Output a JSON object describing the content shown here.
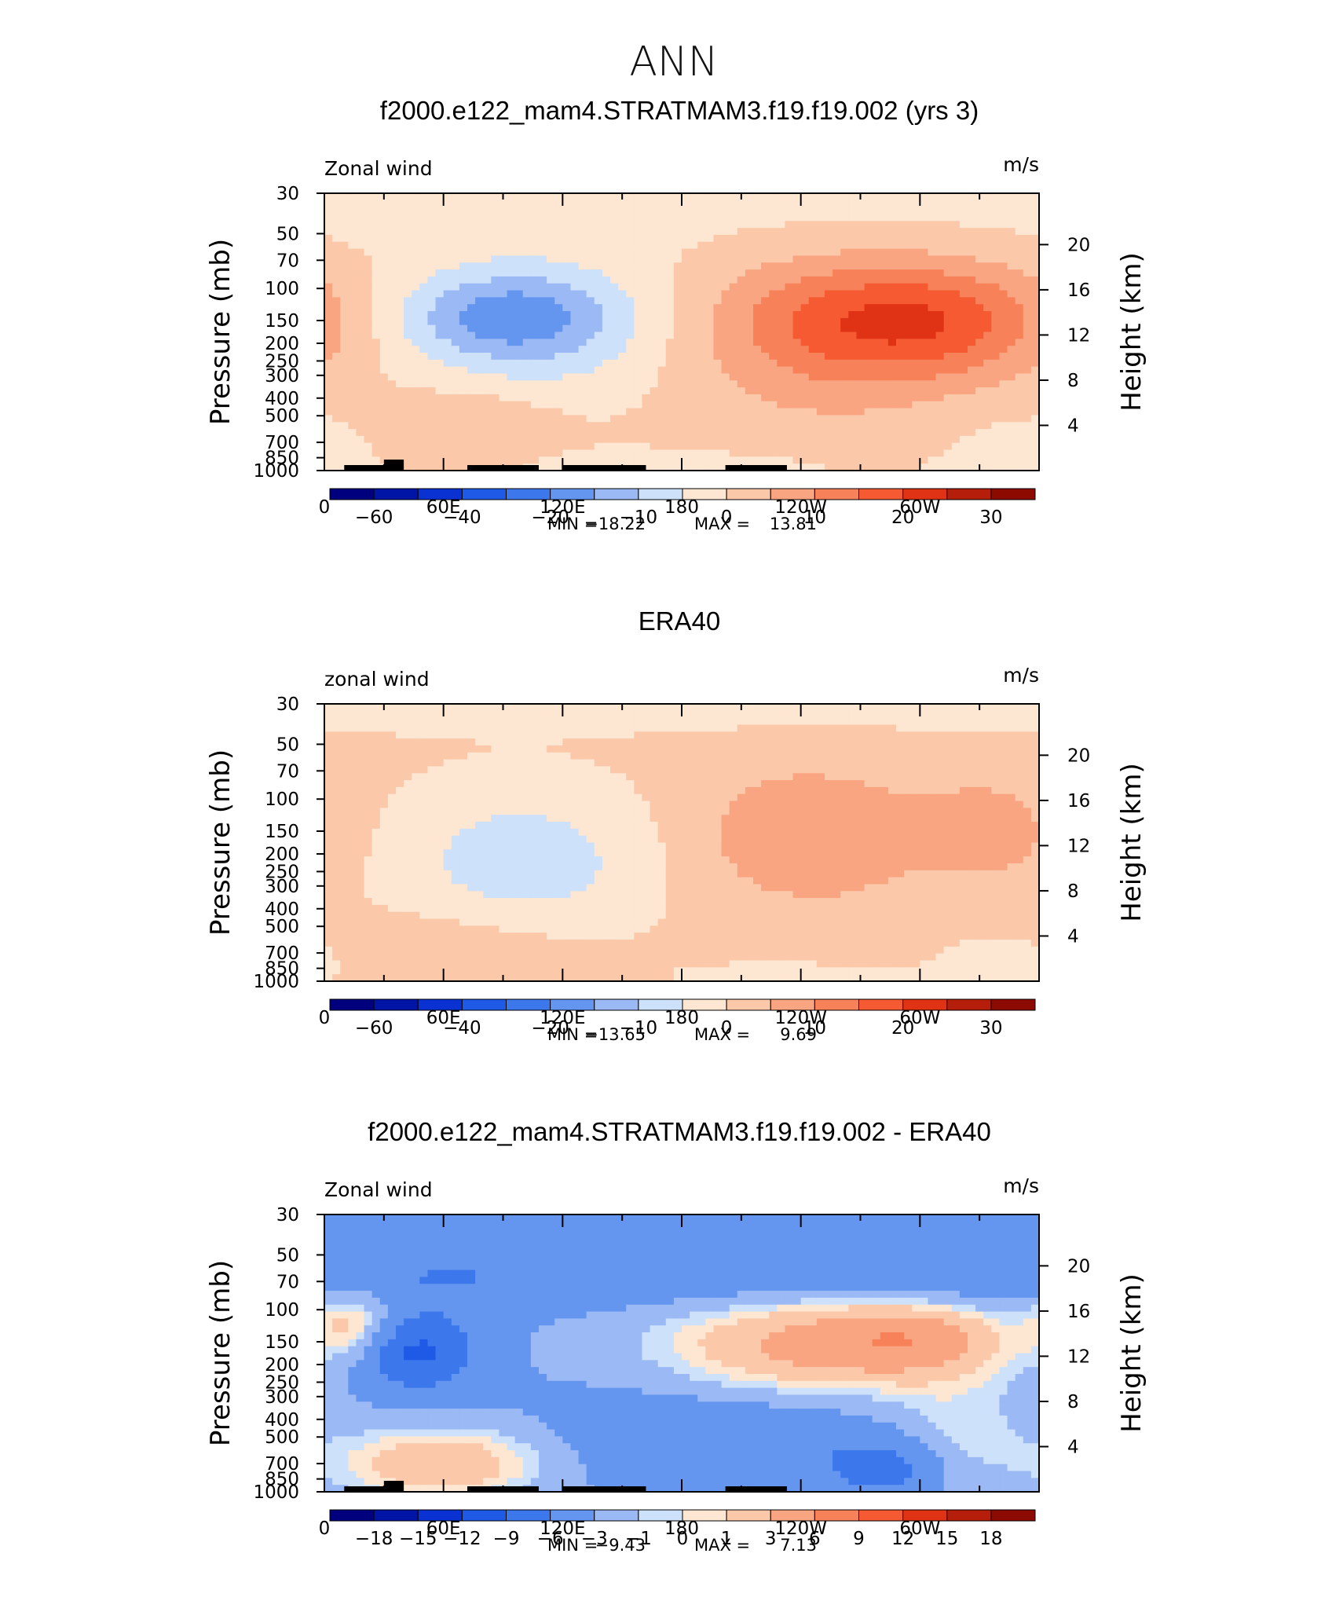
{
  "page_title": "ANN",
  "chart_data": [
    {
      "type": "heatmap",
      "title": "f2000.e122_mam4.STRATMAM3.f19.f19.002 (yrs 3)",
      "left_label": "Zonal wind",
      "units": "m/s",
      "ylabel": "Pressure (mb)",
      "ylabel_right": "Height (km)",
      "x_ticks": [
        "0",
        "60E",
        "120E",
        "180",
        "120W",
        "60W"
      ],
      "x_range_deg": [
        0,
        360
      ],
      "y_ticks": [
        "30",
        "50",
        "70",
        "100",
        "150",
        "200",
        "250",
        "300",
        "400",
        "500",
        "700",
        "850",
        "1000"
      ],
      "y_range_mb": [
        1000,
        30
      ],
      "y_scale": "log",
      "right_ticks": [
        "20",
        "16",
        "12",
        "8",
        "4"
      ],
      "stats": {
        "min_label": "MIN =",
        "min": "−18.22",
        "max_label": "MAX =",
        "max": "13.81"
      },
      "colorbar": {
        "colors": [
          "#00007f",
          "#0014a6",
          "#0a32d2",
          "#1e5ae6",
          "#3c78eb",
          "#6496f0",
          "#9bb9f5",
          "#cde1fa",
          "#fde6d2",
          "#fbc8aa",
          "#f9a582",
          "#f7825a",
          "#f55a32",
          "#e03214",
          "#b41e0a",
          "#8c0a00"
        ],
        "labels": [
          "−60",
          "−40",
          "−20",
          "−10",
          "0",
          "10",
          "20",
          "30"
        ],
        "label_edges": [
          1,
          3,
          5,
          7,
          9,
          11,
          13,
          15
        ]
      },
      "field": {
        "base": 0,
        "blobs": [
          {
            "lon": 40,
            "p": 30,
            "value": -2,
            "sx": 900,
            "sy": 0.45
          },
          {
            "lon": 105,
            "p": 160,
            "value": -10,
            "sx": 45,
            "sy": 0.6
          },
          {
            "lon": 90,
            "p": 140,
            "value": -10,
            "sx": 35,
            "sy": 0.35
          },
          {
            "lon": 75,
            "p": 550,
            "value": 5,
            "sx": 30,
            "sy": 0.35
          },
          {
            "lon": 260,
            "p": 150,
            "value": 13,
            "sx": 45,
            "sy": 0.55
          },
          {
            "lon": 320,
            "p": 150,
            "value": 12,
            "sx": 40,
            "sy": 0.5
          },
          {
            "lon": 255,
            "p": 300,
            "value": 4,
            "sx": 60,
            "sy": 0.9
          },
          {
            "lon": 190,
            "p": 950,
            "value": -3,
            "sx": 60,
            "sy": 0.15
          },
          {
            "lon": 340,
            "p": 700,
            "value": -2,
            "sx": 35,
            "sy": 0.4
          }
        ]
      }
    },
    {
      "type": "heatmap",
      "title": "ERA40",
      "left_label": "zonal wind",
      "units": "m/s",
      "ylabel": "Pressure (mb)",
      "ylabel_right": "Height (km)",
      "x_ticks": [
        "0",
        "60E",
        "120E",
        "180",
        "120W",
        "60W"
      ],
      "x_range_deg": [
        0,
        360
      ],
      "y_ticks": [
        "30",
        "50",
        "70",
        "100",
        "150",
        "200",
        "250",
        "300",
        "400",
        "500",
        "700",
        "850",
        "1000"
      ],
      "y_range_mb": [
        1000,
        30
      ],
      "y_scale": "log",
      "right_ticks": [
        "20",
        "16",
        "12",
        "8",
        "4"
      ],
      "stats": {
        "min_label": "MIN =",
        "min": "−13.65",
        "max_label": "MAX =",
        "max": "9.69"
      },
      "colorbar": {
        "colors": [
          "#00007f",
          "#0014a6",
          "#0a32d2",
          "#1e5ae6",
          "#3c78eb",
          "#6496f0",
          "#9bb9f5",
          "#cde1fa",
          "#fde6d2",
          "#fbc8aa",
          "#f9a582",
          "#f7825a",
          "#f55a32",
          "#e03214",
          "#b41e0a",
          "#8c0a00"
        ],
        "labels": [
          "−60",
          "−40",
          "−20",
          "−10",
          "0",
          "10",
          "20",
          "30"
        ],
        "label_edges": [
          1,
          3,
          5,
          7,
          9,
          11,
          13,
          15
        ]
      },
      "field": {
        "base": 1,
        "blobs": [
          {
            "lon": 180,
            "p": 30,
            "value": -3,
            "sx": 900,
            "sy": 0.25
          },
          {
            "lon": 100,
            "p": 220,
            "value": -9,
            "sx": 45,
            "sy": 0.65
          },
          {
            "lon": 245,
            "p": 160,
            "value": 9,
            "sx": 40,
            "sy": 0.6
          },
          {
            "lon": 335,
            "p": 150,
            "value": 7,
            "sx": 25,
            "sy": 0.45
          },
          {
            "lon": 70,
            "p": 700,
            "value": 4,
            "sx": 40,
            "sy": 0.4
          },
          {
            "lon": 230,
            "p": 950,
            "value": -2.5,
            "sx": 40,
            "sy": 0.15
          },
          {
            "lon": 345,
            "p": 800,
            "value": -2.5,
            "sx": 30,
            "sy": 0.3
          }
        ]
      }
    },
    {
      "type": "heatmap",
      "title": "f2000.e122_mam4.STRATMAM3.f19.f19.002 - ERA40",
      "left_label": "Zonal wind",
      "units": "m/s",
      "ylabel": "Pressure (mb)",
      "ylabel_right": "Height (km)",
      "x_ticks": [
        "0",
        "60E",
        "120E",
        "180",
        "120W",
        "60W"
      ],
      "x_range_deg": [
        0,
        360
      ],
      "y_ticks": [
        "30",
        "50",
        "70",
        "100",
        "150",
        "200",
        "250",
        "300",
        "400",
        "500",
        "700",
        "850",
        "1000"
      ],
      "y_range_mb": [
        1000,
        30
      ],
      "y_scale": "log",
      "right_ticks": [
        "20",
        "16",
        "12",
        "8",
        "4"
      ],
      "stats": {
        "min_label": "MIN =",
        "min": "−9.43",
        "max_label": "MAX =",
        "max": "7.13"
      },
      "colorbar": {
        "colors": [
          "#00007f",
          "#0014a6",
          "#0a32d2",
          "#1e5ae6",
          "#3c78eb",
          "#6496f0",
          "#9bb9f5",
          "#cde1fa",
          "#fde6d2",
          "#fbc8aa",
          "#f9a582",
          "#f7825a",
          "#f55a32",
          "#e03214",
          "#b41e0a",
          "#8c0a00"
        ],
        "labels": [
          "−18",
          "−15",
          "−12",
          "−9",
          "−6",
          "−3",
          "−1",
          "0",
          "1",
          "3",
          "6",
          "9",
          "12",
          "15",
          "18"
        ],
        "label_edges": [
          1,
          2,
          3,
          4,
          5,
          6,
          7,
          8,
          9,
          10,
          11,
          12,
          13,
          14,
          15
        ]
      },
      "field": {
        "base": -3,
        "blobs": [
          {
            "lon": 180,
            "p": 65,
            "value": -3,
            "sx": 900,
            "sy": 0.3
          },
          {
            "lon": 45,
            "p": 170,
            "value": -7,
            "sx": 22,
            "sy": 0.35
          },
          {
            "lon": 250,
            "p": 160,
            "value": 7,
            "sx": 60,
            "sy": 0.5
          },
          {
            "lon": 300,
            "p": 140,
            "value": 4,
            "sx": 30,
            "sy": 0.3
          },
          {
            "lon": 60,
            "p": 700,
            "value": 6,
            "sx": 40,
            "sy": 0.35
          },
          {
            "lon": 15,
            "p": 120,
            "value": 5,
            "sx": 15,
            "sy": 0.35
          },
          {
            "lon": 285,
            "p": 750,
            "value": -4,
            "sx": 20,
            "sy": 0.25
          },
          {
            "lon": 210,
            "p": 500,
            "value": -3,
            "sx": 70,
            "sy": 0.5
          },
          {
            "lon": 320,
            "p": 500,
            "value": 3,
            "sx": 25,
            "sy": 0.5
          }
        ]
      }
    }
  ]
}
